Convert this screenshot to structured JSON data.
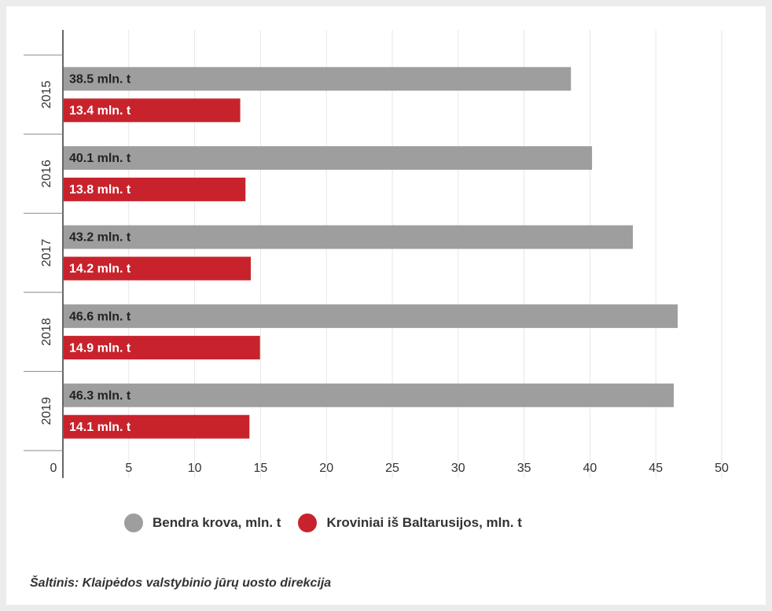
{
  "colors": {
    "total": "#9e9e9e",
    "belarus": "#c8232c",
    "axis": "#333333",
    "grid": "#e6e6e6"
  },
  "chart_data": {
    "type": "bar",
    "orientation": "horizontal",
    "categories": [
      "2015",
      "2016",
      "2017",
      "2018",
      "2019"
    ],
    "series": [
      {
        "name": "Bendra krova, mln. t",
        "values": [
          38.5,
          40.1,
          43.2,
          46.6,
          46.3
        ],
        "labels": [
          "38.5 mln. t",
          "40.1 mln. t",
          "43.2 mln. t",
          "46.6 mln. t",
          "46.3 mln. t"
        ]
      },
      {
        "name": "Kroviniai iš Baltarusijos, mln. t",
        "values": [
          13.4,
          13.8,
          14.2,
          14.9,
          14.1
        ],
        "labels": [
          "13.4 mln. t",
          "13.8 mln. t",
          "14.2 mln. t",
          "14.9 mln. t",
          "14.1 mln. t"
        ]
      }
    ],
    "xlim": [
      0,
      50
    ],
    "xticks": [
      "0",
      "5",
      "10",
      "15",
      "20",
      "25",
      "30",
      "35",
      "40",
      "45",
      "50"
    ],
    "grid": true,
    "legend_position": "bottom"
  },
  "legend": {
    "total_label": "Bendra krova, mln. t",
    "belarus_label": "Kroviniai iš Baltarusijos, mln. t"
  },
  "source": "Šaltinis: Klaipėdos valstybinio jūrų uosto direkcija"
}
